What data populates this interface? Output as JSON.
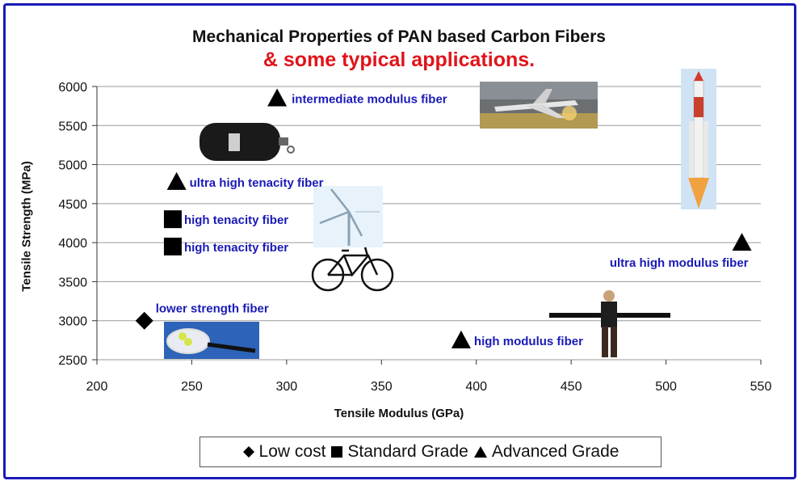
{
  "chart_data": {
    "type": "scatter",
    "title": "Mechanical Properties of PAN based Carbon Fibers",
    "subtitle": "& some typical applications.",
    "xlabel": "Tensile Modulus (GPa)",
    "ylabel": "Tensile Strength (MPa)",
    "xlim": [
      200,
      550
    ],
    "ylim": [
      2500,
      6000
    ],
    "xticks": [
      200,
      250,
      300,
      350,
      400,
      450,
      500,
      550
    ],
    "yticks": [
      2500,
      3000,
      3500,
      4000,
      4500,
      5000,
      5500,
      6000
    ],
    "grid": "horizontal",
    "legend_position": "bottom",
    "series": [
      {
        "name": "Low cost",
        "marker": "diamond",
        "points": [
          {
            "x": 225,
            "y": 3000,
            "label": "lower strength fiber"
          }
        ]
      },
      {
        "name": "Standard Grade",
        "marker": "square",
        "points": [
          {
            "x": 240,
            "y": 4300,
            "label": "high tenacity fiber"
          },
          {
            "x": 240,
            "y": 3950,
            "label": "high tenacity fiber"
          }
        ]
      },
      {
        "name": "Advanced Grade",
        "marker": "triangle",
        "points": [
          {
            "x": 295,
            "y": 5850,
            "label": "intermediate modulus fiber"
          },
          {
            "x": 242,
            "y": 4780,
            "label": "ultra high tenacity fiber"
          },
          {
            "x": 392,
            "y": 2750,
            "label": "high modulus fiber"
          },
          {
            "x": 540,
            "y": 4000,
            "label": "ultra high modulus fiber"
          }
        ]
      }
    ],
    "colors": {
      "marker": "#000000",
      "label": "#1a1ab8",
      "title": "#111111",
      "subtitle": "#e0141b",
      "grid": "#9a9a9a",
      "frame": "#1a1ab8"
    },
    "illustrations": [
      "airplane",
      "rocket",
      "gas-cylinder",
      "wind-turbine",
      "bicycle",
      "tennis-racket",
      "person-with-beam"
    ]
  }
}
